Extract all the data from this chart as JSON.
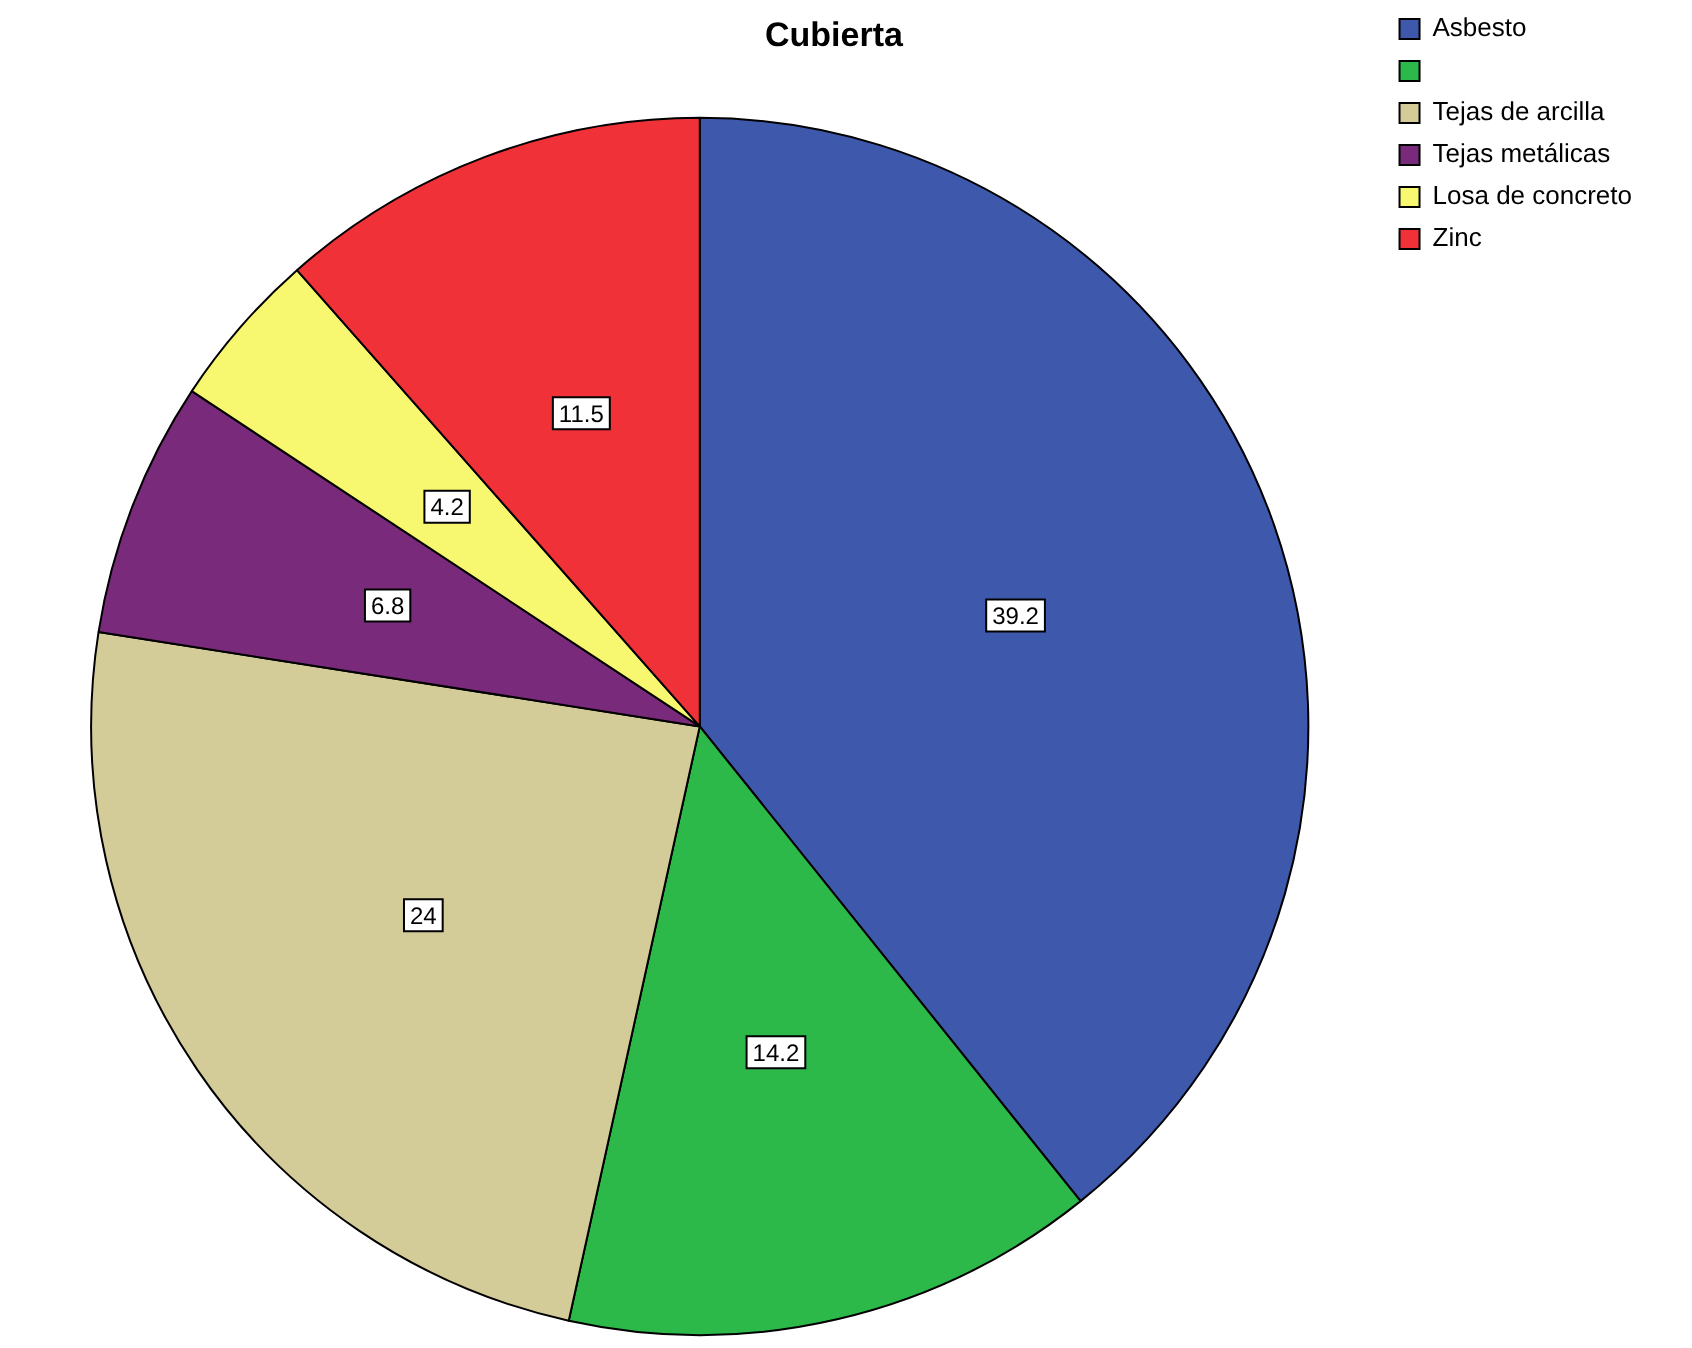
{
  "chart_data": {
    "type": "pie",
    "title": "Cubierta",
    "categories": [
      "Asbesto",
      null,
      "Tejas de arcilla",
      "Tejas metálicas",
      "Losa de concreto",
      "Zinc"
    ],
    "values": [
      39.2,
      14.2,
      24,
      6.8,
      4.2,
      11.5
    ],
    "colors": [
      "#3e58ac",
      "#2db84a",
      "#d4cc98",
      "#7a2a7a",
      "#f8f870",
      "#f03238"
    ],
    "data_labels": true,
    "legend": "top right"
  }
}
